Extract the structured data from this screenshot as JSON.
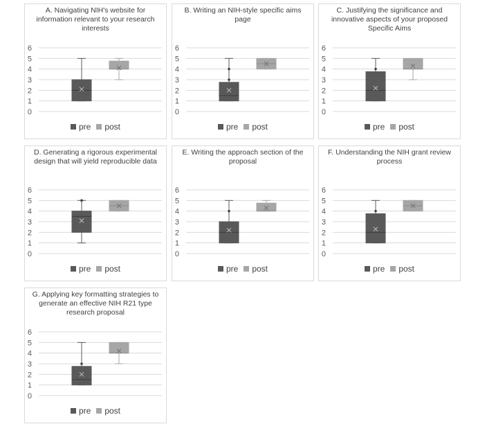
{
  "chart_data": [
    {
      "type": "box",
      "title": "A. Navigating NIH's website for information relevant to your research interests",
      "yticks": [
        0,
        1,
        2,
        3,
        4,
        5,
        6
      ],
      "ylim": [
        0,
        6
      ],
      "grid": true,
      "legend_position": "bottom",
      "series": [
        {
          "name": "pre",
          "color": "#595959",
          "min": 1,
          "q1": 1,
          "median": 2,
          "q3": 3,
          "max": 5,
          "mean": 2.1,
          "points": []
        },
        {
          "name": "post",
          "color": "#a6a6a6",
          "min": 3,
          "q1": 4,
          "median": 4,
          "q3": 4.75,
          "max": 5,
          "mean": 4.1,
          "points": []
        }
      ]
    },
    {
      "type": "box",
      "title": "B. Writing an NIH-style specific aims page",
      "yticks": [
        0,
        1,
        2,
        3,
        4,
        5,
        6
      ],
      "ylim": [
        0,
        6
      ],
      "grid": true,
      "legend_position": "bottom",
      "series": [
        {
          "name": "pre",
          "color": "#595959",
          "min": 1,
          "q1": 1,
          "median": 1.5,
          "q3": 2.75,
          "max": 5,
          "mean": 2.0,
          "points": [
            3,
            4
          ]
        },
        {
          "name": "post",
          "color": "#a6a6a6",
          "min": 4,
          "q1": 4,
          "median": 4.5,
          "q3": 5,
          "max": 5,
          "mean": 4.5,
          "points": []
        }
      ]
    },
    {
      "type": "box",
      "title": "C. Justifying the significance and innovative aspects of your proposed Specific Aims",
      "yticks": [
        0,
        1,
        2,
        3,
        4,
        5,
        6
      ],
      "ylim": [
        0,
        6
      ],
      "grid": true,
      "legend_position": "bottom",
      "series": [
        {
          "name": "pre",
          "color": "#595959",
          "min": 1,
          "q1": 1,
          "median": 2,
          "q3": 3.75,
          "max": 5,
          "mean": 2.2,
          "points": [
            4
          ]
        },
        {
          "name": "post",
          "color": "#a6a6a6",
          "min": 3,
          "q1": 4,
          "median": 4,
          "q3": 5,
          "max": 5,
          "mean": 4.3,
          "points": []
        }
      ]
    },
    {
      "type": "box",
      "title": "D. Generating a rigorous experimental design that will yield reproducible data",
      "yticks": [
        0,
        1,
        2,
        3,
        4,
        5,
        6
      ],
      "ylim": [
        0,
        6
      ],
      "grid": true,
      "legend_position": "bottom",
      "series": [
        {
          "name": "pre",
          "color": "#595959",
          "min": 1,
          "q1": 2,
          "median": 3.5,
          "q3": 4,
          "max": 5,
          "mean": 3.1,
          "points": [
            5
          ]
        },
        {
          "name": "post",
          "color": "#a6a6a6",
          "min": 4,
          "q1": 4,
          "median": 4.5,
          "q3": 5,
          "max": 5,
          "mean": 4.5,
          "points": []
        }
      ]
    },
    {
      "type": "box",
      "title": "E. Writing the approach section of the proposal",
      "yticks": [
        0,
        1,
        2,
        3,
        4,
        5,
        6
      ],
      "ylim": [
        0,
        6
      ],
      "grid": true,
      "legend_position": "bottom",
      "series": [
        {
          "name": "pre",
          "color": "#595959",
          "min": 1,
          "q1": 1,
          "median": 2,
          "q3": 3,
          "max": 5,
          "mean": 2.2,
          "points": [
            4
          ]
        },
        {
          "name": "post",
          "color": "#a6a6a6",
          "min": 4,
          "q1": 4,
          "median": 4,
          "q3": 4.75,
          "max": 5,
          "mean": 4.3,
          "points": []
        }
      ]
    },
    {
      "type": "box",
      "title": "F. Understanding the NIH grant review process",
      "yticks": [
        0,
        1,
        2,
        3,
        4,
        5,
        6
      ],
      "ylim": [
        0,
        6
      ],
      "grid": true,
      "legend_position": "bottom",
      "series": [
        {
          "name": "pre",
          "color": "#595959",
          "min": 1,
          "q1": 1,
          "median": 2,
          "q3": 3.75,
          "max": 5,
          "mean": 2.3,
          "points": [
            4
          ]
        },
        {
          "name": "post",
          "color": "#a6a6a6",
          "min": 4,
          "q1": 4,
          "median": 4.5,
          "q3": 5,
          "max": 5,
          "mean": 4.5,
          "points": []
        }
      ]
    },
    {
      "type": "box",
      "title": "G. Applying key formatting strategies to generate an effective NIH R21 type research proposal",
      "yticks": [
        0,
        1,
        2,
        3,
        4,
        5,
        6
      ],
      "ylim": [
        0,
        6
      ],
      "grid": true,
      "legend_position": "bottom",
      "series": [
        {
          "name": "pre",
          "color": "#595959",
          "min": 1,
          "q1": 1,
          "median": 1.5,
          "q3": 2.75,
          "max": 5,
          "mean": 2.0,
          "points": [
            3
          ]
        },
        {
          "name": "post",
          "color": "#a6a6a6",
          "min": 3,
          "q1": 4,
          "median": 4,
          "q3": 5,
          "max": 5,
          "mean": 4.2,
          "points": []
        }
      ]
    }
  ]
}
